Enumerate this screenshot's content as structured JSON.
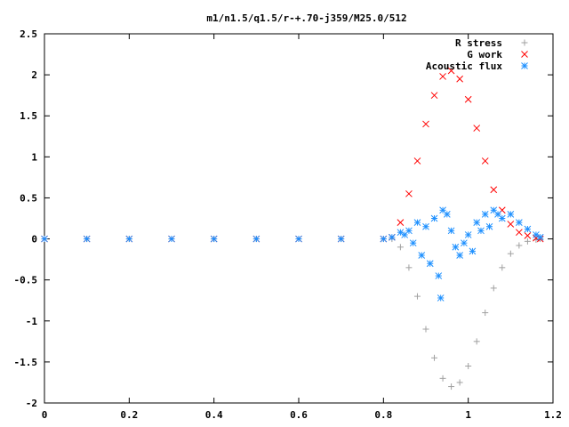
{
  "chart_data": {
    "type": "scatter",
    "title": "m1/n1.5/q1.5/r-+.70-j359/M25.0/512",
    "xlabel": "",
    "ylabel": "",
    "xlim": [
      0,
      1.2
    ],
    "ylim": [
      -2,
      2.5
    ],
    "xticks": [
      "0",
      "0.2",
      "0.4",
      "0.6",
      "0.8",
      "1",
      "1.2"
    ],
    "yticks": [
      "2.5",
      "2",
      "1.5",
      "1",
      "0.5",
      "0",
      "-0.5",
      "-1",
      "-1.5",
      "-2"
    ],
    "grid": false,
    "legend_position": "top-right",
    "series": [
      {
        "name": "R stress",
        "marker": "plus",
        "color": "#a0a0a0",
        "x": [
          0.0,
          0.1,
          0.2,
          0.3,
          0.4,
          0.5,
          0.6,
          0.7,
          0.8,
          0.82,
          0.84,
          0.86,
          0.88,
          0.9,
          0.92,
          0.94,
          0.96,
          0.98,
          1.0,
          1.02,
          1.04,
          1.06,
          1.08,
          1.1,
          1.12,
          1.14,
          1.16,
          1.17
        ],
        "y": [
          0,
          0,
          0,
          0,
          0,
          0,
          0,
          0,
          0,
          0,
          -0.1,
          -0.35,
          -0.7,
          -1.1,
          -1.45,
          -1.7,
          -1.8,
          -1.75,
          -1.55,
          -1.25,
          -0.9,
          -0.6,
          -0.35,
          -0.18,
          -0.08,
          -0.03,
          -0.01,
          0
        ]
      },
      {
        "name": "G work",
        "marker": "cross",
        "color": "#ff0000",
        "x": [
          0.0,
          0.1,
          0.2,
          0.3,
          0.4,
          0.5,
          0.6,
          0.7,
          0.8,
          0.82,
          0.84,
          0.86,
          0.88,
          0.9,
          0.92,
          0.94,
          0.96,
          0.98,
          1.0,
          1.02,
          1.04,
          1.06,
          1.08,
          1.1,
          1.12,
          1.14,
          1.16,
          1.17
        ],
        "y": [
          0,
          0,
          0,
          0,
          0,
          0,
          0,
          0,
          0,
          0.02,
          0.2,
          0.55,
          0.95,
          1.4,
          1.75,
          1.98,
          2.05,
          1.95,
          1.7,
          1.35,
          0.95,
          0.6,
          0.35,
          0.18,
          0.08,
          0.04,
          0.01,
          0
        ]
      },
      {
        "name": "Acoustic flux",
        "marker": "star",
        "color": "#1e90ff",
        "x": [
          0.0,
          0.1,
          0.2,
          0.3,
          0.4,
          0.5,
          0.6,
          0.7,
          0.8,
          0.82,
          0.84,
          0.85,
          0.86,
          0.87,
          0.88,
          0.89,
          0.9,
          0.91,
          0.92,
          0.93,
          0.935,
          0.94,
          0.95,
          0.96,
          0.97,
          0.98,
          0.99,
          1.0,
          1.01,
          1.02,
          1.03,
          1.04,
          1.05,
          1.06,
          1.07,
          1.08,
          1.1,
          1.12,
          1.14,
          1.16,
          1.17
        ],
        "y": [
          0,
          0,
          0,
          0,
          0,
          0,
          0,
          0,
          0,
          0.02,
          0.08,
          0.05,
          0.1,
          -0.05,
          0.2,
          -0.2,
          0.15,
          -0.3,
          0.25,
          -0.45,
          -0.72,
          0.35,
          0.3,
          0.1,
          -0.1,
          -0.2,
          -0.05,
          0.05,
          -0.15,
          0.2,
          0.1,
          0.3,
          0.15,
          0.35,
          0.3,
          0.25,
          0.3,
          0.2,
          0.12,
          0.05,
          0.02
        ]
      }
    ]
  }
}
